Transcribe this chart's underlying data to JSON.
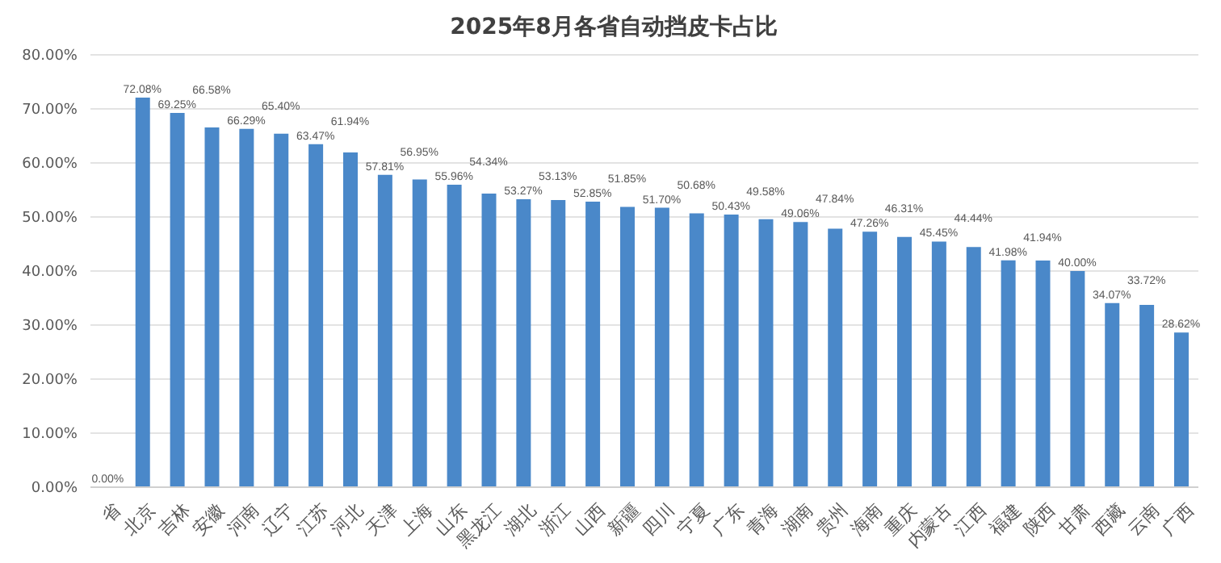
{
  "chart_data": {
    "type": "bar",
    "title": "2025年8月各省自动挡皮卡占比",
    "categories": [
      "省",
      "北京",
      "吉林",
      "安徽",
      "河南",
      "辽宁",
      "江苏",
      "河北",
      "天津",
      "上海",
      "山东",
      "黑龙江",
      "湖北",
      "浙江",
      "山西",
      "新疆",
      "四川",
      "宁夏",
      "广东",
      "青海",
      "湖南",
      "贵州",
      "海南",
      "重庆",
      "内蒙古",
      "江西",
      "福建",
      "陕西",
      "甘肃",
      "西藏",
      "云南",
      "广西"
    ],
    "values": [
      0,
      72.08,
      69.25,
      66.58,
      66.29,
      65.4,
      63.47,
      61.94,
      57.81,
      56.95,
      55.96,
      54.34,
      53.27,
      53.13,
      52.85,
      51.85,
      51.7,
      50.68,
      50.43,
      49.58,
      49.06,
      47.84,
      47.26,
      46.31,
      45.45,
      44.44,
      41.98,
      41.94,
      40,
      34.07,
      33.72,
      28.62
    ],
    "value_labels": [
      "0.00%",
      "72.08%",
      "69.25%",
      "66.58%",
      "66.29%",
      "65.40%",
      "63.47%",
      "61.94%",
      "57.81%",
      "56.95%",
      "55.96%",
      "54.34%",
      "53.27%",
      "53.13%",
      "52.85%",
      "51.85%",
      "51.70%",
      "50.68%",
      "50.43%",
      "49.58%",
      "49.06%",
      "47.84%",
      "47.26%",
      "46.31%",
      "45.45%",
      "44.44%",
      "41.98%",
      "41.94%",
      "40.00%",
      "34.07%",
      "33.72%",
      "28.62%"
    ],
    "color": "#4a88c9",
    "ylim": [
      0,
      80
    ],
    "yticks": [
      {
        "value": 0,
        "label": "0.00%"
      },
      {
        "value": 10,
        "label": "10.00%"
      },
      {
        "value": 20,
        "label": "20.00%"
      },
      {
        "value": 30,
        "label": "30.00%"
      },
      {
        "value": 40,
        "label": "40.00%"
      },
      {
        "value": 50,
        "label": "50.00%"
      },
      {
        "value": 60,
        "label": "60.00%"
      },
      {
        "value": 70,
        "label": "70.00%"
      },
      {
        "value": 80,
        "label": "80.00%"
      }
    ],
    "grid": "y",
    "legend": false
  }
}
